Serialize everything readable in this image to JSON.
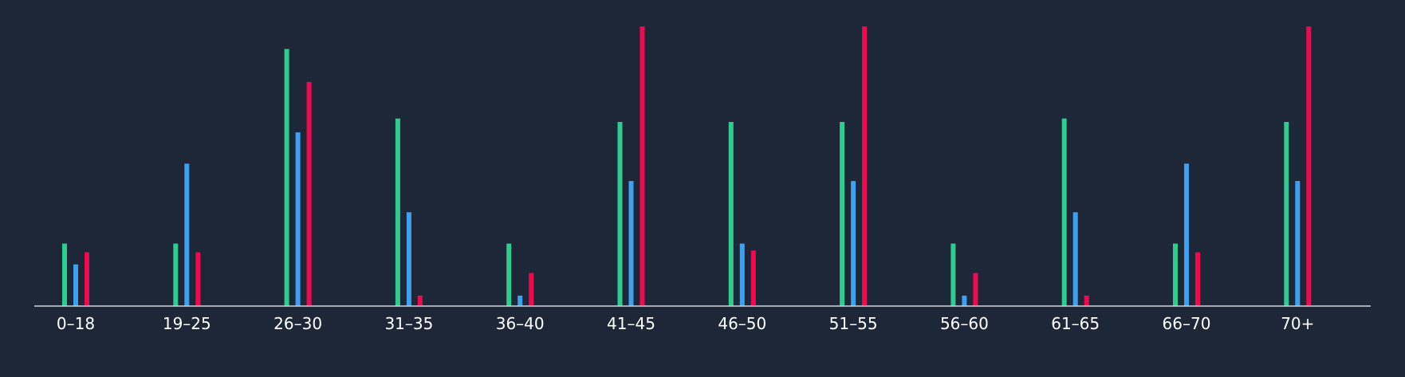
{
  "chart_data": {
    "type": "bar",
    "categories": [
      "0–18",
      "19–25",
      "26–30",
      "31–35",
      "36–40",
      "41–45",
      "46–50",
      "51–55",
      "56–60",
      "61–65",
      "66–70",
      "70+"
    ],
    "series": [
      {
        "color": "#2ecc8f",
        "values": [
          18,
          18,
          74,
          54,
          18,
          53,
          53,
          53,
          18,
          54,
          18,
          53
        ]
      },
      {
        "color": "#3ea0f0",
        "values": [
          12,
          41,
          50,
          27,
          3,
          36,
          18,
          36,
          3,
          27,
          41,
          36
        ]
      },
      {
        "color": "#f0094f",
        "values": [
          15.5,
          15.5,
          64.5,
          3,
          9.5,
          80.5,
          16,
          80.5,
          9.5,
          3,
          15.5,
          80.5
        ]
      }
    ],
    "ylim": [
      0,
      81
    ],
    "grid": false,
    "legend": "none",
    "background": "#1e2738",
    "axis_color": "#d0d4dc",
    "label_color": "#ffffff"
  }
}
